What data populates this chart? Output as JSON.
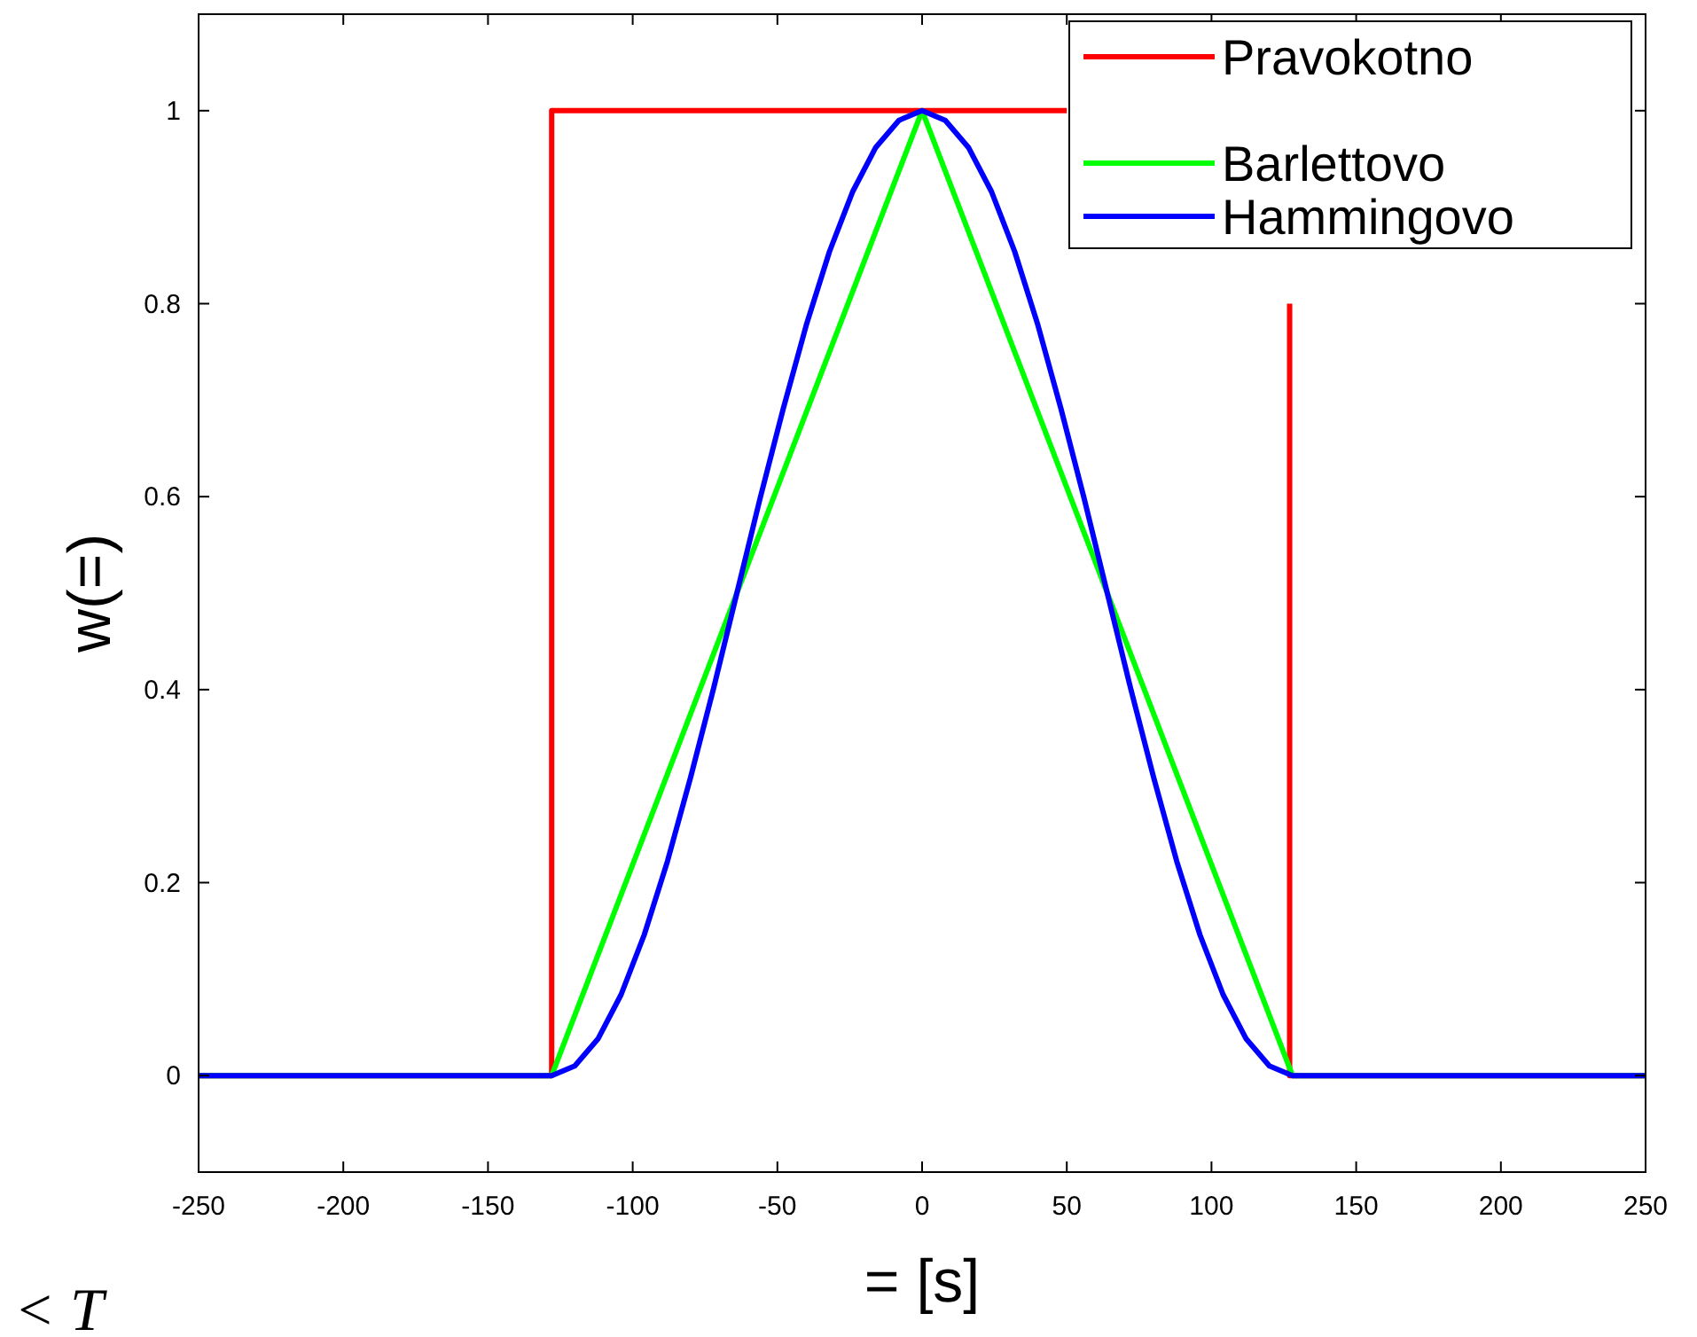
{
  "chart_data": {
    "type": "line",
    "xlabel": "= [s]",
    "ylabel": "w(=)",
    "annotations": [
      "< T"
    ],
    "xlim": [
      -250,
      250
    ],
    "ylim": [
      -0.1,
      1.1
    ],
    "xticks": [
      -250,
      -200,
      -150,
      -100,
      -50,
      0,
      50,
      100,
      150,
      200,
      250
    ],
    "yticks": [
      0,
      0.2,
      0.4,
      0.6,
      0.8,
      1
    ],
    "grid": false,
    "legend": "top right",
    "line_style": "solid",
    "series": [
      {
        "name": "Pravokotno",
        "color": "#ff0000",
        "x": [
          -250,
          -128,
          -128,
          50
        ],
        "values": [
          0,
          0,
          1,
          1
        ]
      },
      {
        "color": "#ff0000",
        "x": [
          127,
          127,
          250
        ],
        "values": [
          0.8,
          0,
          0
        ]
      },
      {
        "name": "Barlettovo",
        "color": "#00ff00",
        "x": [
          -250,
          -128,
          0,
          128,
          250
        ],
        "values": [
          0,
          0,
          1,
          0,
          0
        ]
      },
      {
        "name": "Hammingovo",
        "color": "#0000ff",
        "x": [
          -250,
          -128,
          -120,
          -112,
          -104,
          -96,
          -88,
          -80,
          -72,
          -64,
          -56,
          -48,
          -40,
          -32,
          -24,
          -16,
          -8,
          0,
          8,
          16,
          24,
          32,
          40,
          48,
          56,
          64,
          72,
          80,
          88,
          96,
          104,
          112,
          120,
          128,
          250
        ],
        "values": [
          0,
          0,
          0.01,
          0.038,
          0.084,
          0.146,
          0.222,
          0.309,
          0.402,
          0.5,
          0.598,
          0.691,
          0.778,
          0.854,
          0.916,
          0.962,
          0.99,
          1,
          0.99,
          0.962,
          0.916,
          0.854,
          0.778,
          0.691,
          0.598,
          0.5,
          0.402,
          0.309,
          0.222,
          0.146,
          0.084,
          0.038,
          0.01,
          0,
          0
        ]
      }
    ]
  }
}
